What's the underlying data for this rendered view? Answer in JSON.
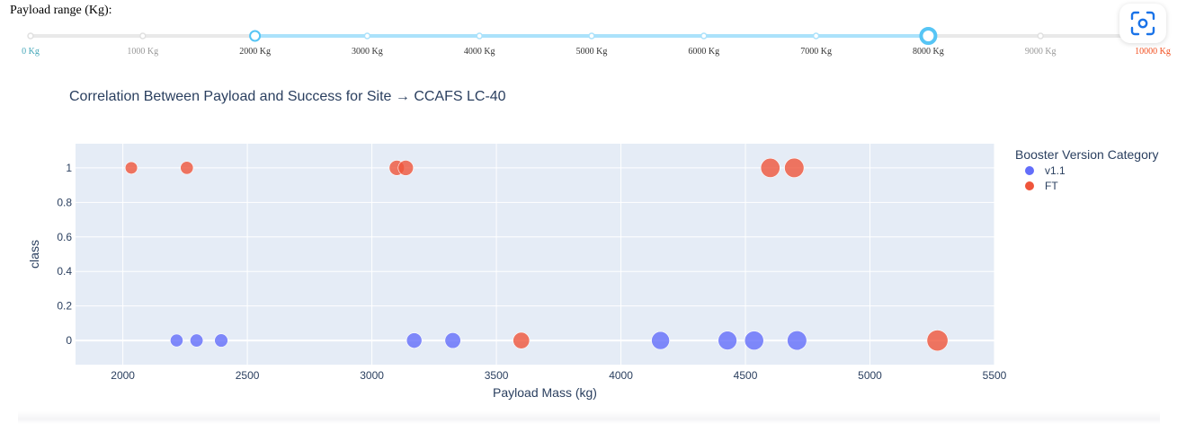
{
  "slider": {
    "label": "Payload range (Kg):",
    "min": 0,
    "max": 10000,
    "selected_low": 2000,
    "selected_high": 8000,
    "marks": [
      "0 Kg",
      "1000 Kg",
      "2000 Kg",
      "3000 Kg",
      "4000 Kg",
      "5000 Kg",
      "6000 Kg",
      "7000 Kg",
      "8000 Kg",
      "9000 Kg",
      "10000 Kg"
    ],
    "colors": {
      "track": "#e9e9e9",
      "active": "#abe2fb",
      "handle": "#56c5f5",
      "first_mark": "#43a6b8",
      "last_mark": "#f24e1e",
      "mark": "#999999"
    }
  },
  "toolbar": {
    "scan_icon": "scan-icon"
  },
  "chart_data": {
    "type": "scatter",
    "title": "Correlation Between Payload and Success for Site → CCAFS LC-40",
    "xlabel": "Payload Mass (kg)",
    "ylabel": "class",
    "xlim": [
      1810,
      5500
    ],
    "ylim": [
      -0.14,
      1.14
    ],
    "xticks": [
      2000,
      2500,
      3000,
      3500,
      4000,
      4500,
      5000,
      5500
    ],
    "yticks": [
      0,
      0.2,
      0.4,
      0.6,
      0.8,
      1
    ],
    "legend_title": "Booster Version Category",
    "legend_position": "right",
    "grid": true,
    "series": [
      {
        "name": "v1.1",
        "color": "#636efa",
        "points": [
          {
            "x": 2216,
            "y": 0
          },
          {
            "x": 2296,
            "y": 0
          },
          {
            "x": 2395,
            "y": 0
          },
          {
            "x": 3170,
            "y": 0
          },
          {
            "x": 3325,
            "y": 0
          },
          {
            "x": 4159,
            "y": 0
          },
          {
            "x": 4428,
            "y": 0
          },
          {
            "x": 4535,
            "y": 0
          },
          {
            "x": 4707,
            "y": 0
          }
        ]
      },
      {
        "name": "FT",
        "color": "#ef553b",
        "points": [
          {
            "x": 2034,
            "y": 1
          },
          {
            "x": 2257,
            "y": 1
          },
          {
            "x": 3100,
            "y": 1
          },
          {
            "x": 3136,
            "y": 1
          },
          {
            "x": 4600,
            "y": 1
          },
          {
            "x": 4696,
            "y": 1
          },
          {
            "x": 3600,
            "y": 0
          },
          {
            "x": 5271,
            "y": 0
          }
        ]
      }
    ]
  }
}
